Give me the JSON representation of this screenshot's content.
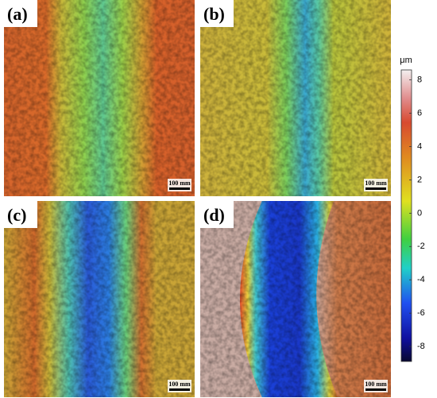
{
  "panels": [
    {
      "label": "(a)",
      "scale_bar": "100 mm"
    },
    {
      "label": "(b)",
      "scale_bar": "100 mm"
    },
    {
      "label": "(c)",
      "scale_bar": "100 mm"
    },
    {
      "label": "(d)",
      "scale_bar": "100 mm"
    }
  ],
  "colorbar": {
    "unit": "μm",
    "range": [
      -8.9,
      8.6
    ],
    "ticks": [
      8,
      6,
      4,
      2,
      0,
      -2,
      -4,
      -6,
      -8
    ]
  }
}
